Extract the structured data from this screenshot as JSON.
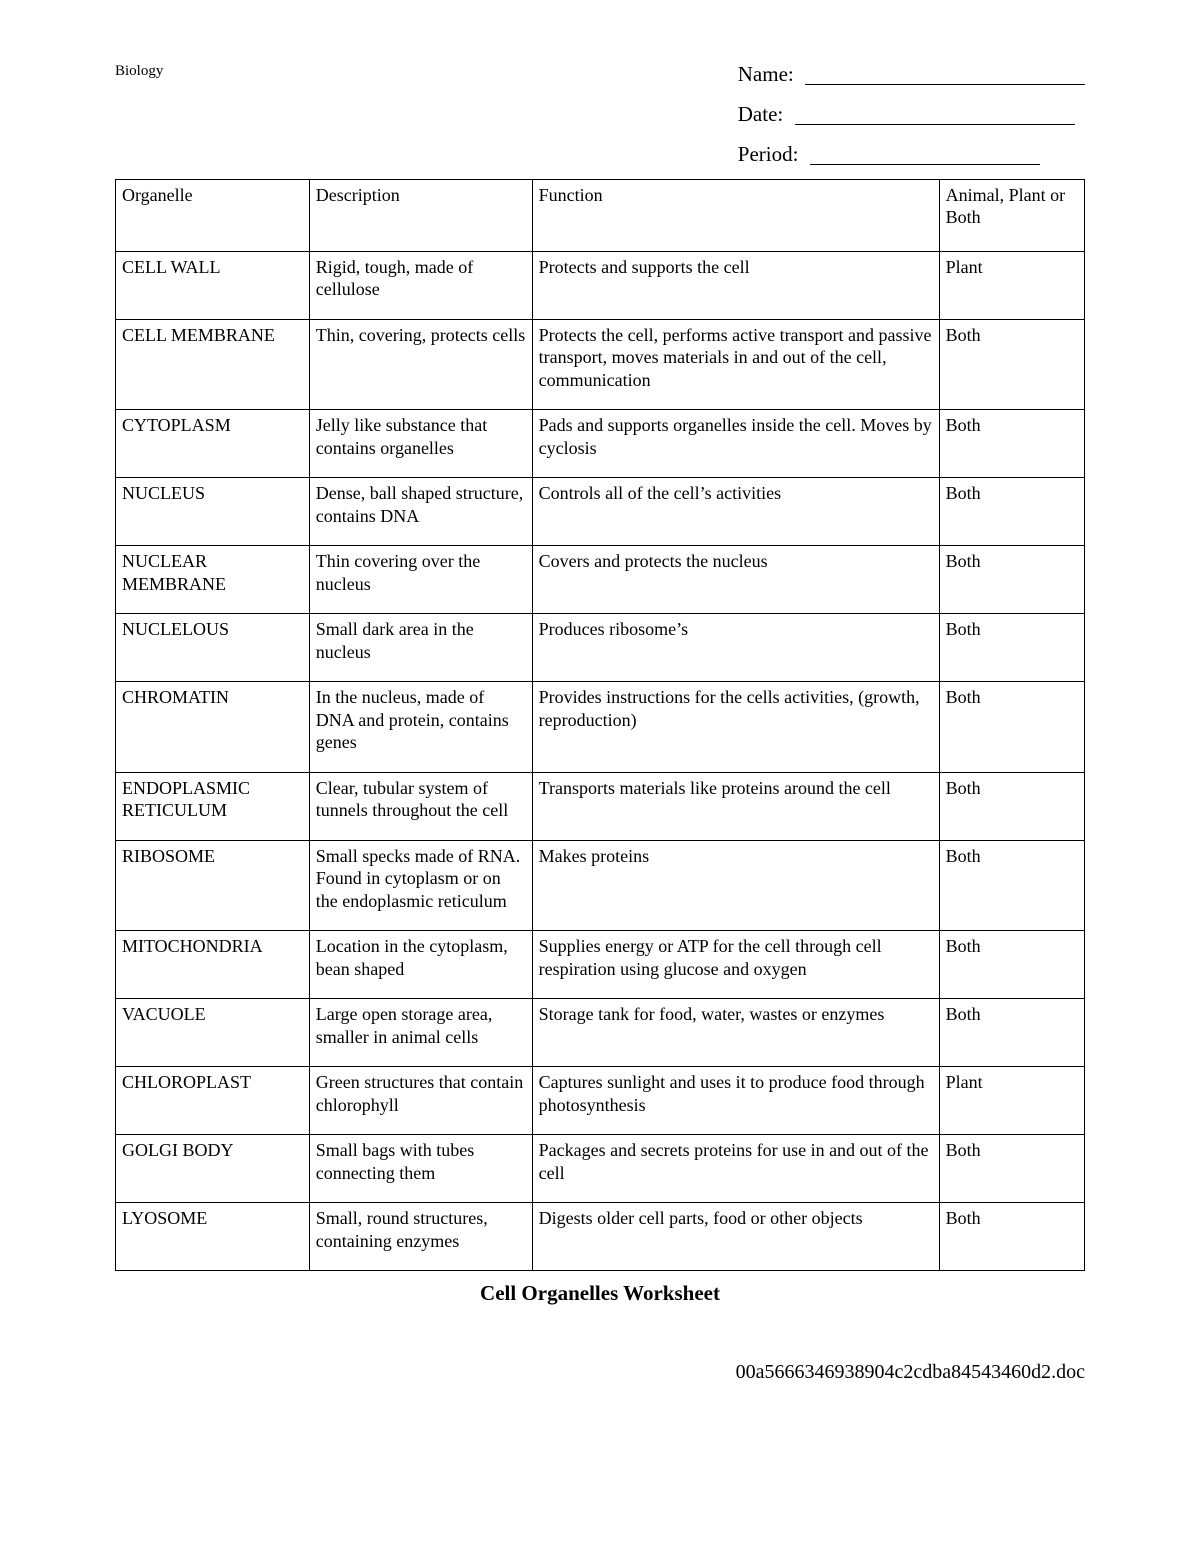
{
  "header": {
    "subject": "Biology",
    "name_label": "Name:",
    "date_label": "Date:",
    "period_label": "Period:"
  },
  "columns": {
    "organelle": "Organelle",
    "description": "Description",
    "function": "Function",
    "type": "Animal, Plant or Both"
  },
  "rows": [
    {
      "organelle": "CELL WALL",
      "description": "Rigid, tough, made of cellulose",
      "function": "Protects and supports the cell",
      "type": "Plant"
    },
    {
      "organelle": "CELL MEMBRANE",
      "description": "Thin, covering, protects cells",
      "function": "Protects the cell, performs active transport and passive transport, moves materials in and out of the cell, communication",
      "type": "Both"
    },
    {
      "organelle": "CYTOPLASM",
      "description": "Jelly like substance that contains organelles",
      "function": "Pads and supports organelles inside the cell. Moves by cyclosis",
      "type": "Both"
    },
    {
      "organelle": "NUCLEUS",
      "description": "Dense, ball shaped structure, contains DNA",
      "function": "Controls all of the cell’s activities",
      "type": "Both"
    },
    {
      "organelle": "NUCLEAR MEMBRANE",
      "description": "Thin covering over the nucleus",
      "function": "Covers and protects the nucleus",
      "type": "Both"
    },
    {
      "organelle": "NUCLELOUS",
      "description": "Small dark area in the nucleus",
      "function": "Produces ribosome’s",
      "type": "Both"
    },
    {
      "organelle": "CHROMATIN",
      "description": "In the nucleus, made of DNA and protein, contains genes",
      "function": "Provides instructions for the cells activities, (growth, reproduction)",
      "type": "Both"
    },
    {
      "organelle": "ENDOPLASMIC RETICULUM",
      "description": "Clear, tubular system of tunnels throughout the cell",
      "function": "Transports materials like proteins around the cell",
      "type": "Both"
    },
    {
      "organelle": "RIBOSOME",
      "description": "Small specks made of RNA. Found in cytoplasm or on the endoplasmic reticulum",
      "function": "Makes proteins",
      "type": "Both"
    },
    {
      "organelle": "MITOCHONDRIA",
      "description": "Location in the cytoplasm, bean shaped",
      "function": "Supplies energy or ATP for the cell through cell respiration using glucose and oxygen",
      "type": "Both"
    },
    {
      "organelle": "VACUOLE",
      "description": "Large open storage area, smaller in animal cells",
      "function": "Storage tank for food, water, wastes or enzymes",
      "type": "Both"
    },
    {
      "organelle": "CHLOROPLAST",
      "description": "Green structures that contain chlorophyll",
      "function": "Captures sunlight and uses it to produce food through photosynthesis",
      "type": "Plant"
    },
    {
      "organelle": "GOLGI BODY",
      "description": "Small bags with tubes connecting them",
      "function": "Packages and secrets proteins for use in and out of the cell",
      "type": "Both"
    },
    {
      "organelle": "LYOSOME",
      "description": "Small, round structures, containing enzymes",
      "function": "Digests older cell parts, food or other objects",
      "type": "Both"
    }
  ],
  "title": "Cell Organelles Worksheet",
  "footer": "00a5666346938904c2cdba84543460d2.doc"
}
